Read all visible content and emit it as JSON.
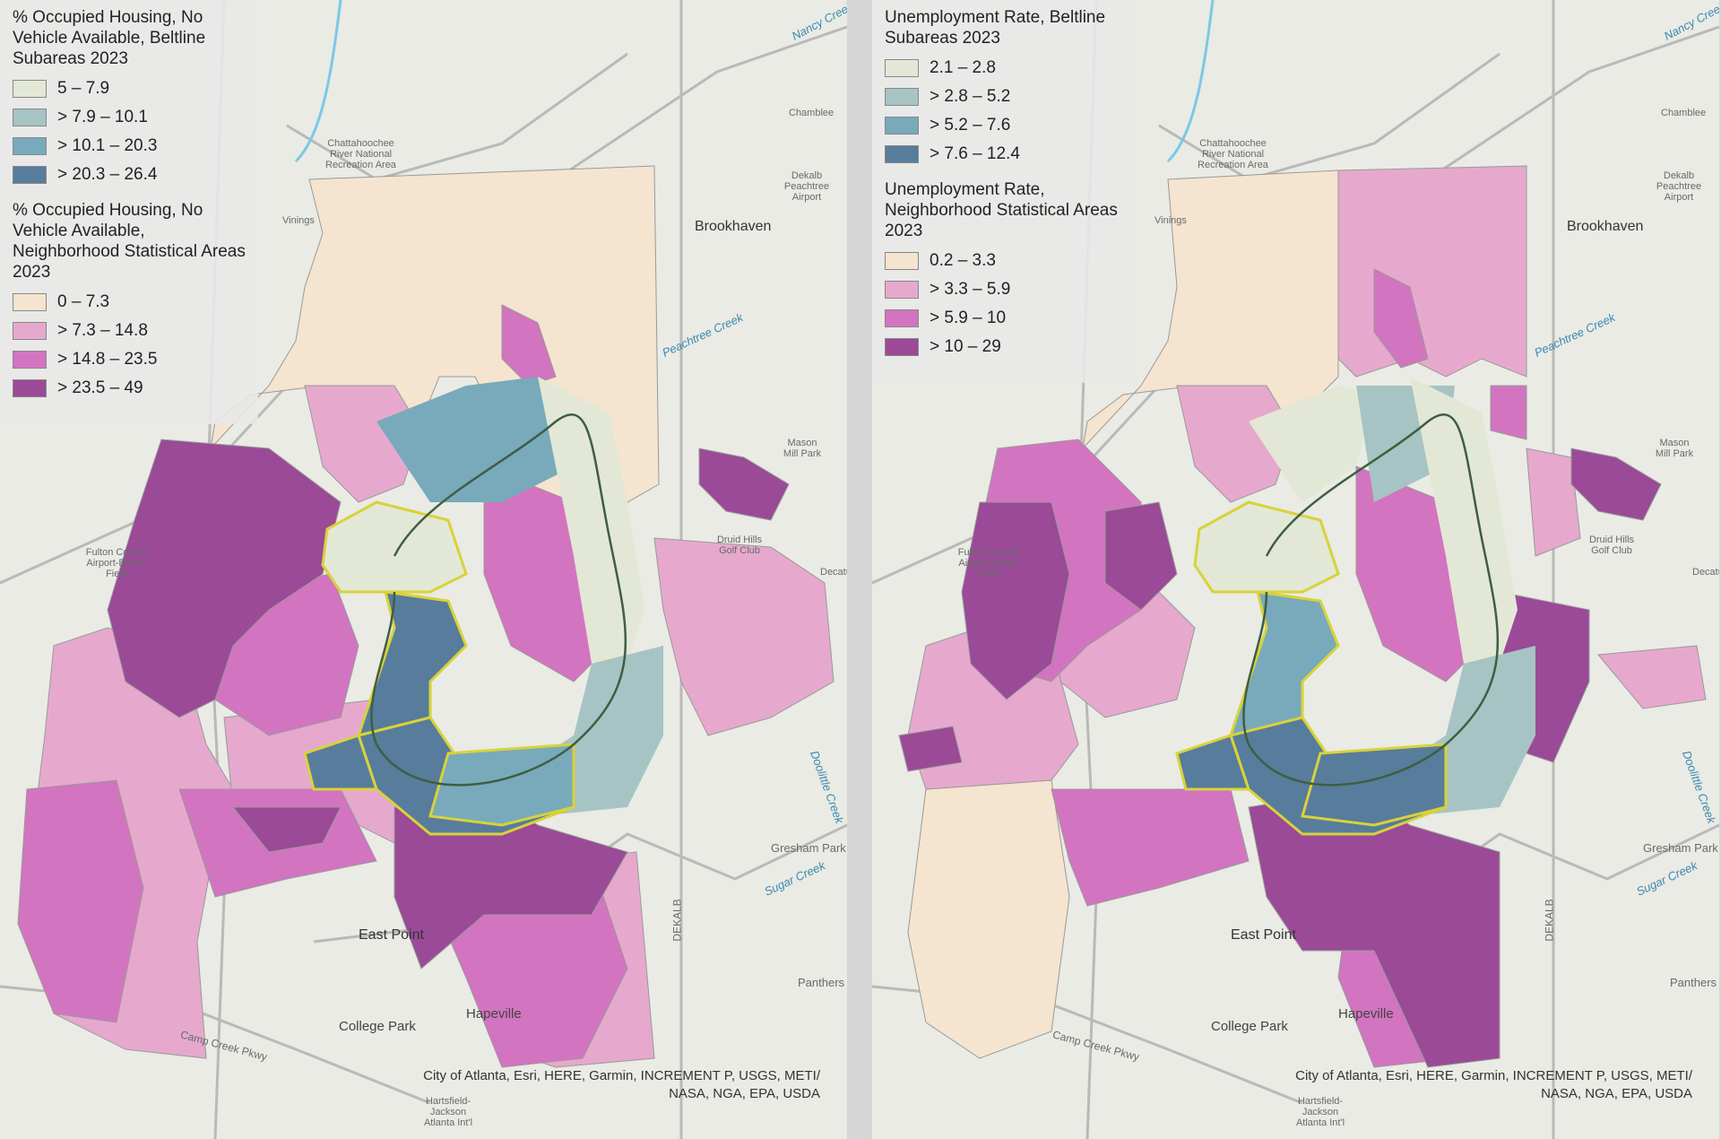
{
  "panels": [
    {
      "id": "left",
      "legend": {
        "beltline_title": "% Occupied Housing, No\nVehicle Available, Beltline\nSubareas 2023",
        "beltline_classes": [
          {
            "label": "5 – 7.9",
            "color": "#e3e8d6"
          },
          {
            "label": "> 7.9 – 10.1",
            "color": "#a6c4c3"
          },
          {
            "label": "> 10.1 – 20.3",
            "color": "#78aabb"
          },
          {
            "label": "> 20.3 – 26.4",
            "color": "#587c9b"
          }
        ],
        "nsa_title": "% Occupied Housing, No\nVehicle Available,\nNeighborhood Statistical Areas\n2023",
        "nsa_classes": [
          {
            "label": "0 – 7.3",
            "color": "#f5e4cf"
          },
          {
            "label": "> 7.3 – 14.8",
            "color": "#e6a9cd"
          },
          {
            "label": "> 14.8 – 23.5",
            "color": "#d374c0"
          },
          {
            "label": "> 23.5 – 49",
            "color": "#9a4a97"
          }
        ]
      },
      "map_labels": [
        "Brookhaven",
        "East Point",
        "College Park",
        "Hapeville",
        "Gresham Park",
        "Panthers",
        "Druid Hills Golf Club",
        "Mason Mill Park",
        "Dekalb Peachtree Airport",
        "Chattahoochee River National Recreation Area",
        "Fulton County Airport-Brown Field",
        "Hartsfield-Jackson Atlanta Int'l",
        "DEKALB",
        "Peachtree Creek",
        "Nancy Creek",
        "Sugar Creek",
        "Doolittle Creek",
        "Camp Creek Pkwy",
        "Vinings",
        "Chamblee",
        "Decatur"
      ],
      "attribution": "City of Atlanta, Esri, HERE, Garmin, INCREMENT P, USGS, METI/\nNASA, NGA, EPA, USDA"
    },
    {
      "id": "right",
      "legend": {
        "beltline_title": "Unemployment Rate, Beltline\nSubareas 2023",
        "beltline_classes": [
          {
            "label": "2.1 – 2.8",
            "color": "#e3e8d6"
          },
          {
            "label": "> 2.8 – 5.2",
            "color": "#a6c4c3"
          },
          {
            "label": "> 5.2 – 7.6",
            "color": "#78aabb"
          },
          {
            "label": "> 7.6 – 12.4",
            "color": "#587c9b"
          }
        ],
        "nsa_title": "Unemployment Rate,\nNeighborhood Statistical Areas\n2023",
        "nsa_classes": [
          {
            "label": "0.2 – 3.3",
            "color": "#f5e4cf"
          },
          {
            "label": "> 3.3 – 5.9",
            "color": "#e6a9cd"
          },
          {
            "label": "> 5.9 – 10",
            "color": "#d374c0"
          },
          {
            "label": "> 10 – 29",
            "color": "#9a4a97"
          }
        ]
      },
      "map_labels": [
        "Brookhaven",
        "East Point",
        "College Park",
        "Hapeville",
        "Gresham Park",
        "Panthers",
        "Druid Hills Golf Club",
        "Mason Mill Park",
        "Dekalb Peachtree Airport",
        "Chattahoochee River National Recreation Area",
        "Fulton County Airport-Brown Field",
        "Hartsfield-Jackson Atlanta Int'l",
        "DEKALB",
        "Peachtree Creek",
        "Nancy Creek",
        "Sugar Creek",
        "Doolittle Creek",
        "Camp Creek Pkwy",
        "Vinings",
        "Chamblee",
        "Decatur"
      ],
      "attribution": "City of Atlanta, Esri, HERE, Garmin, INCREMENT P, USGS, METI/\nNASA, NGA, EPA, USDA"
    }
  ]
}
